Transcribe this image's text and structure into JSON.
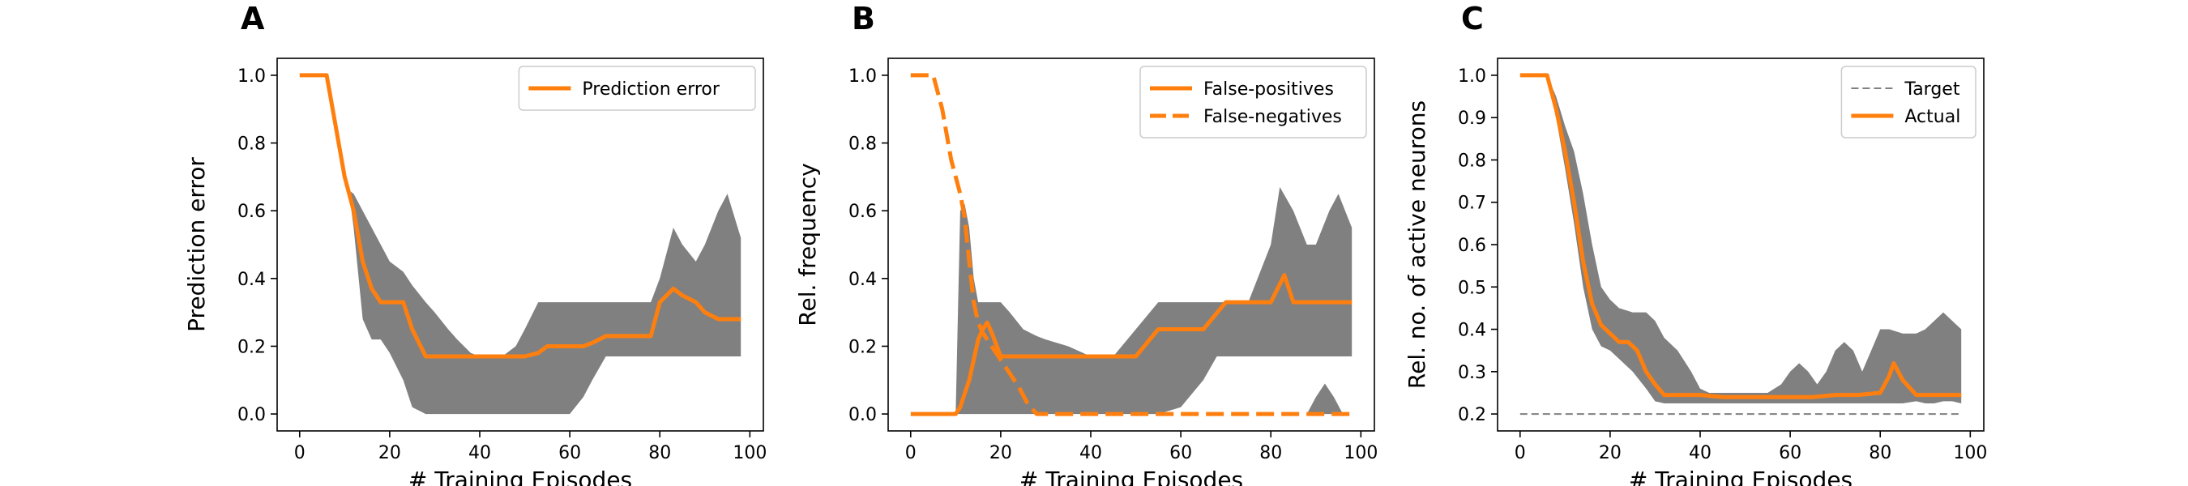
{
  "figure": {
    "background": "#ffffff",
    "band_color": "#808080",
    "line_color": "#ff7f0e"
  },
  "chart_data": [
    {
      "type": "line",
      "panel_label": "A",
      "xlabel": "# Training Episodes",
      "ylabel": "Prediction error",
      "xlim": [
        -5,
        103
      ],
      "ylim": [
        -0.05,
        1.05
      ],
      "xticks": [
        0,
        20,
        40,
        60,
        80,
        100
      ],
      "xtick_labels": [
        "0",
        "20",
        "40",
        "60",
        "80",
        "100"
      ],
      "yticks": [
        0.0,
        0.2,
        0.4,
        0.6,
        0.8,
        1.0
      ],
      "ytick_labels": [
        "0.0",
        "0.2",
        "0.4",
        "0.6",
        "0.8",
        "1.0"
      ],
      "grid": false,
      "legend": "upper right",
      "series": [
        {
          "name": "Prediction error",
          "style": "solid",
          "color": "#ff7f0e",
          "x": [
            0,
            6,
            8,
            10,
            11,
            12,
            14,
            16,
            18,
            20,
            23,
            25,
            28,
            30,
            33,
            35,
            38,
            40,
            43,
            45,
            48,
            50,
            53,
            55,
            58,
            60,
            63,
            65,
            68,
            70,
            73,
            75,
            78,
            80,
            83,
            85,
            88,
            90,
            93,
            95,
            98
          ],
          "y": [
            1.0,
            1.0,
            0.85,
            0.7,
            0.65,
            0.6,
            0.45,
            0.37,
            0.33,
            0.33,
            0.33,
            0.25,
            0.17,
            0.17,
            0.17,
            0.17,
            0.17,
            0.17,
            0.17,
            0.17,
            0.17,
            0.17,
            0.18,
            0.2,
            0.2,
            0.2,
            0.2,
            0.21,
            0.23,
            0.23,
            0.23,
            0.23,
            0.23,
            0.33,
            0.37,
            0.35,
            0.33,
            0.3,
            0.28,
            0.28,
            0.28
          ]
        }
      ],
      "band": {
        "x": [
          0,
          6,
          8,
          10,
          11,
          12,
          14,
          16,
          18,
          20,
          23,
          25,
          28,
          30,
          33,
          35,
          38,
          40,
          43,
          45,
          48,
          50,
          53,
          55,
          58,
          60,
          63,
          65,
          68,
          70,
          73,
          75,
          78,
          80,
          83,
          85,
          88,
          90,
          93,
          95,
          98
        ],
        "upper": [
          1.0,
          1.0,
          0.85,
          0.7,
          0.66,
          0.65,
          0.6,
          0.55,
          0.5,
          0.45,
          0.42,
          0.38,
          0.33,
          0.3,
          0.25,
          0.22,
          0.18,
          0.17,
          0.17,
          0.17,
          0.2,
          0.25,
          0.33,
          0.33,
          0.33,
          0.33,
          0.33,
          0.33,
          0.33,
          0.33,
          0.33,
          0.33,
          0.33,
          0.4,
          0.55,
          0.5,
          0.45,
          0.5,
          0.6,
          0.65,
          0.52
        ],
        "lower": [
          1.0,
          1.0,
          0.85,
          0.7,
          0.65,
          0.55,
          0.28,
          0.22,
          0.22,
          0.18,
          0.1,
          0.02,
          0.0,
          0.0,
          0.0,
          0.0,
          0.0,
          0.0,
          0.0,
          0.0,
          0.0,
          0.0,
          0.0,
          0.0,
          0.0,
          0.0,
          0.05,
          0.1,
          0.17,
          0.17,
          0.17,
          0.17,
          0.17,
          0.17,
          0.17,
          0.17,
          0.17,
          0.17,
          0.17,
          0.17,
          0.17
        ]
      }
    },
    {
      "type": "line",
      "panel_label": "B",
      "xlabel": "# Training Episodes",
      "ylabel": "Rel. frequency",
      "xlim": [
        -5,
        103
      ],
      "ylim": [
        -0.05,
        1.05
      ],
      "xticks": [
        0,
        20,
        40,
        60,
        80,
        100
      ],
      "xtick_labels": [
        "0",
        "20",
        "40",
        "60",
        "80",
        "100"
      ],
      "yticks": [
        0.0,
        0.2,
        0.4,
        0.6,
        0.8,
        1.0
      ],
      "ytick_labels": [
        "0.0",
        "0.2",
        "0.4",
        "0.6",
        "0.8",
        "1.0"
      ],
      "grid": false,
      "legend": "upper right",
      "series": [
        {
          "name": "False-positives",
          "style": "solid",
          "color": "#ff7f0e",
          "x": [
            0,
            5,
            10,
            11,
            12,
            13,
            14,
            15,
            16,
            17,
            18,
            20,
            22,
            25,
            28,
            30,
            35,
            40,
            45,
            50,
            55,
            60,
            65,
            70,
            75,
            80,
            83,
            85,
            90,
            95,
            98
          ],
          "y": [
            0.0,
            0.0,
            0.0,
            0.02,
            0.06,
            0.1,
            0.16,
            0.22,
            0.25,
            0.27,
            0.24,
            0.17,
            0.17,
            0.17,
            0.17,
            0.17,
            0.17,
            0.17,
            0.17,
            0.17,
            0.25,
            0.25,
            0.25,
            0.33,
            0.33,
            0.33,
            0.41,
            0.33,
            0.33,
            0.33,
            0.33
          ]
        },
        {
          "name": "False-negatives",
          "style": "dashed",
          "color": "#ff7f0e",
          "x": [
            0,
            5,
            7,
            9,
            11,
            12,
            13,
            14,
            15,
            16,
            17,
            18,
            20,
            22,
            24,
            26,
            28,
            30,
            40,
            50,
            60,
            70,
            80,
            90,
            98
          ],
          "y": [
            1.0,
            1.0,
            0.9,
            0.75,
            0.65,
            0.58,
            0.45,
            0.33,
            0.27,
            0.24,
            0.22,
            0.2,
            0.16,
            0.12,
            0.08,
            0.03,
            0.0,
            0.0,
            0.0,
            0.0,
            0.0,
            0.0,
            0.0,
            0.0,
            0.0
          ]
        }
      ],
      "band": {
        "x": [
          0,
          5,
          10,
          11,
          12,
          13,
          14,
          15,
          16,
          18,
          20,
          22,
          25,
          28,
          30,
          35,
          40,
          45,
          50,
          55,
          60,
          65,
          68,
          70,
          75,
          80,
          82,
          85,
          88,
          90,
          93,
          95,
          98
        ],
        "upper": [
          0.0,
          0.0,
          0.0,
          0.6,
          0.62,
          0.55,
          0.4,
          0.33,
          0.33,
          0.33,
          0.33,
          0.3,
          0.25,
          0.23,
          0.22,
          0.2,
          0.17,
          0.17,
          0.25,
          0.33,
          0.33,
          0.33,
          0.33,
          0.33,
          0.33,
          0.5,
          0.67,
          0.6,
          0.5,
          0.5,
          0.6,
          0.65,
          0.55
        ],
        "lower": [
          0.0,
          0.0,
          0.0,
          0.0,
          0.0,
          0.0,
          0.0,
          0.0,
          0.0,
          0.0,
          0.0,
          0.0,
          0.0,
          0.0,
          0.0,
          0.0,
          0.0,
          0.0,
          0.0,
          0.0,
          0.02,
          0.1,
          0.17,
          0.17,
          0.17,
          0.17,
          0.17,
          0.17,
          0.17,
          0.17,
          0.17,
          0.17,
          0.17
        ]
      },
      "extra_band": {
        "x": [
          88,
          90,
          92,
          94,
          96,
          98
        ],
        "upper": [
          0.0,
          0.05,
          0.09,
          0.05,
          0.0,
          0.0
        ],
        "lower": [
          0.0,
          0.0,
          0.0,
          0.0,
          0.0,
          0.0
        ]
      }
    },
    {
      "type": "line",
      "panel_label": "C",
      "xlabel": "# Training Episodes",
      "ylabel": "Rel. no. of active neurons",
      "xlim": [
        -5,
        103
      ],
      "ylim": [
        0.16,
        1.04
      ],
      "xticks": [
        0,
        20,
        40,
        60,
        80,
        100
      ],
      "xtick_labels": [
        "0",
        "20",
        "40",
        "60",
        "80",
        "100"
      ],
      "yticks": [
        0.2,
        0.3,
        0.4,
        0.5,
        0.6,
        0.7,
        0.8,
        0.9,
        1.0
      ],
      "ytick_labels": [
        "0.2",
        "0.3",
        "0.4",
        "0.5",
        "0.6",
        "0.7",
        "0.8",
        "0.9",
        "1.0"
      ],
      "grid": false,
      "legend": "upper right",
      "series": [
        {
          "name": "Target",
          "style": "dashed",
          "color": "#808080",
          "x": [
            0,
            98
          ],
          "y": [
            0.2,
            0.2
          ]
        },
        {
          "name": "Actual",
          "style": "solid",
          "color": "#ff7f0e",
          "x": [
            0,
            6,
            8,
            10,
            12,
            14,
            16,
            18,
            20,
            22,
            24,
            26,
            28,
            30,
            32,
            35,
            40,
            45,
            50,
            55,
            60,
            65,
            70,
            75,
            80,
            82,
            83,
            85,
            88,
            90,
            95,
            98
          ],
          "y": [
            1.0,
            1.0,
            0.92,
            0.82,
            0.7,
            0.56,
            0.46,
            0.41,
            0.39,
            0.37,
            0.37,
            0.35,
            0.3,
            0.27,
            0.245,
            0.245,
            0.245,
            0.24,
            0.24,
            0.24,
            0.24,
            0.24,
            0.245,
            0.245,
            0.25,
            0.29,
            0.32,
            0.28,
            0.245,
            0.245,
            0.245,
            0.245
          ]
        }
      ],
      "band": {
        "x": [
          0,
          6,
          8,
          10,
          12,
          14,
          16,
          18,
          20,
          22,
          25,
          28,
          30,
          32,
          35,
          38,
          40,
          42,
          45,
          50,
          55,
          58,
          60,
          62,
          64,
          66,
          68,
          70,
          72,
          74,
          76,
          78,
          80,
          82,
          85,
          88,
          90,
          92,
          94,
          96,
          98
        ],
        "upper": [
          1.0,
          1.0,
          0.95,
          0.88,
          0.82,
          0.72,
          0.6,
          0.5,
          0.47,
          0.45,
          0.44,
          0.44,
          0.42,
          0.38,
          0.35,
          0.3,
          0.26,
          0.25,
          0.25,
          0.25,
          0.25,
          0.27,
          0.3,
          0.32,
          0.3,
          0.27,
          0.3,
          0.35,
          0.37,
          0.35,
          0.3,
          0.35,
          0.4,
          0.4,
          0.39,
          0.39,
          0.4,
          0.42,
          0.44,
          0.42,
          0.4
        ],
        "lower": [
          1.0,
          1.0,
          0.9,
          0.78,
          0.65,
          0.5,
          0.4,
          0.36,
          0.35,
          0.33,
          0.3,
          0.26,
          0.23,
          0.225,
          0.225,
          0.225,
          0.225,
          0.225,
          0.225,
          0.225,
          0.225,
          0.225,
          0.225,
          0.225,
          0.225,
          0.225,
          0.225,
          0.225,
          0.225,
          0.225,
          0.225,
          0.225,
          0.225,
          0.225,
          0.225,
          0.23,
          0.225,
          0.225,
          0.23,
          0.23,
          0.225
        ]
      }
    }
  ]
}
